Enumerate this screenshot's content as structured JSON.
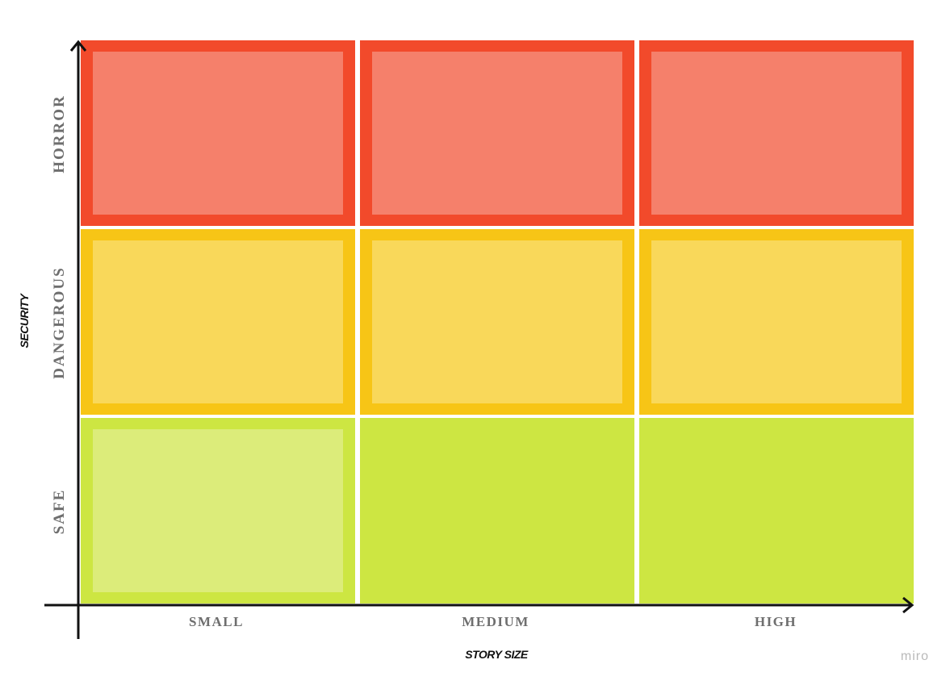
{
  "axis_titles": {
    "y": "SECURITY",
    "x": "STORY SIZE"
  },
  "y_levels": [
    "HORROR",
    "DANGEROUS",
    "SAFE"
  ],
  "x_levels": [
    "SMALL",
    "MEDIUM",
    "HIGH"
  ],
  "cells": [
    [
      {
        "border": "#f24a2b",
        "fill": "#f5806b"
      },
      {
        "border": "#f24a2b",
        "fill": "#f5806b"
      },
      {
        "border": "#f24a2b",
        "fill": "#f5806b"
      }
    ],
    [
      {
        "border": "#f7c516",
        "fill": "#f9d85a"
      },
      {
        "border": "#f7c516",
        "fill": "#f9d85a"
      },
      {
        "border": "#f7c516",
        "fill": "#f9d85a"
      }
    ],
    [
      {
        "border": "#cde642",
        "fill": "#dcec7a"
      },
      {
        "border": "#cde642",
        "fill": "#cde642"
      },
      {
        "border": "#cde642",
        "fill": "#cde642"
      }
    ]
  ],
  "brand": "miro"
}
